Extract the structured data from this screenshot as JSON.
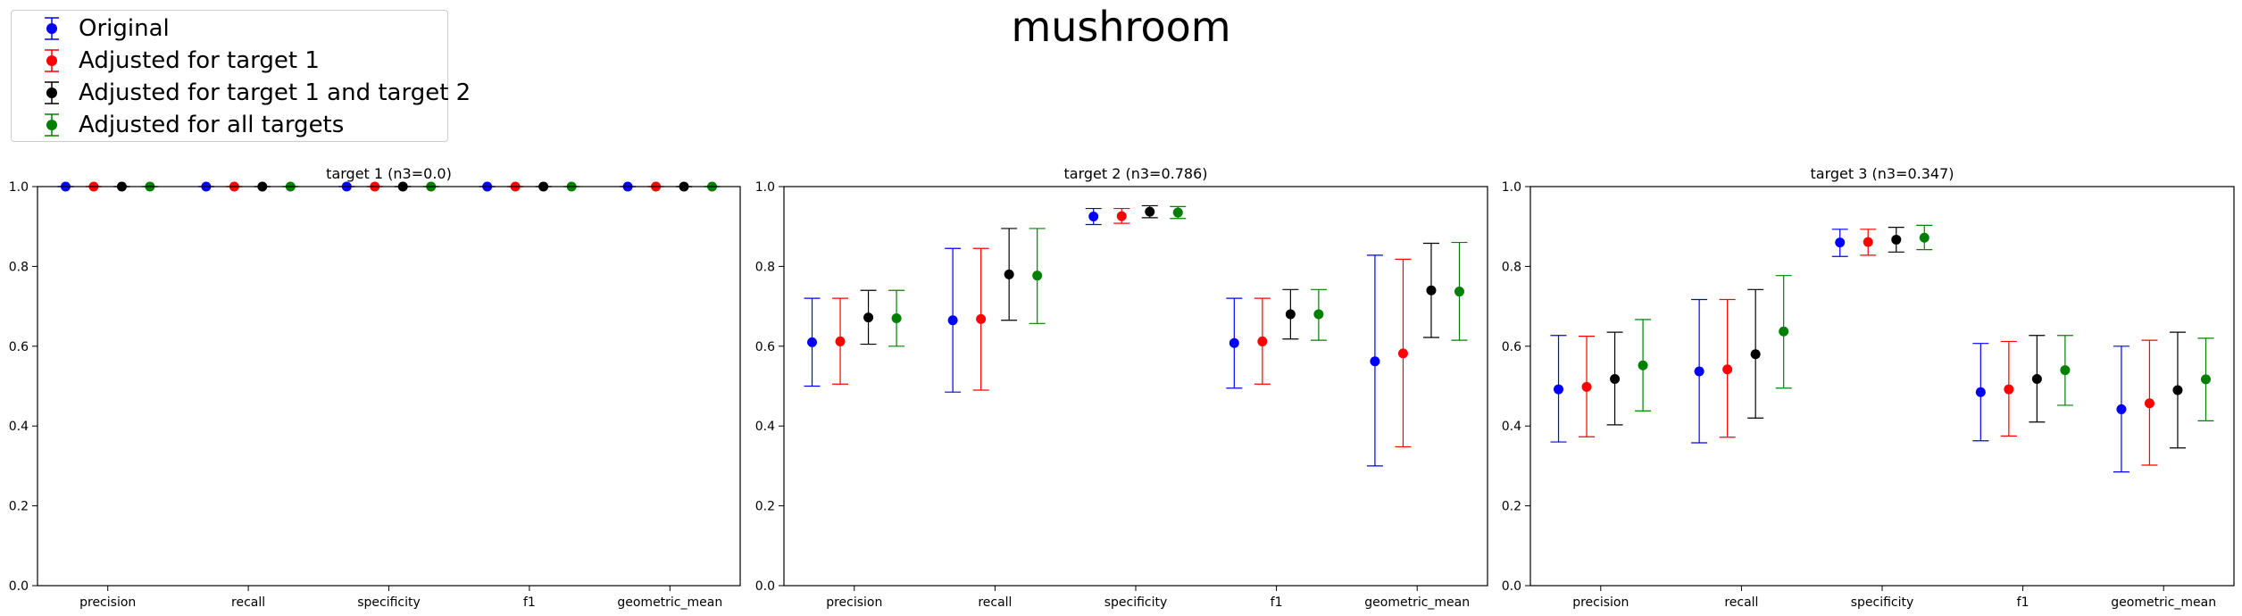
{
  "suptitle": "mushroom",
  "legend": [
    {
      "label": "Original",
      "color": "#0000ff"
    },
    {
      "label": "Adjusted for target 1",
      "color": "#ff0000"
    },
    {
      "label": "Adjusted for target 1 and target 2",
      "color": "#000000"
    },
    {
      "label": "Adjusted for all targets",
      "color": "#008000"
    }
  ],
  "chart_data": [
    {
      "type": "scatter",
      "title": "target 1 (n3=0.0)",
      "categories": [
        "precision",
        "recall",
        "specificity",
        "f1",
        "geometric_mean"
      ],
      "ylim": [
        0.0,
        1.0
      ],
      "yticks": [
        "0.0",
        "0.2",
        "0.4",
        "0.6",
        "0.8",
        "1.0"
      ],
      "series": [
        {
          "name": "Original",
          "color": "#0000ff",
          "values": [
            1.0,
            1.0,
            1.0,
            1.0,
            1.0
          ],
          "lower": [
            1.0,
            1.0,
            1.0,
            1.0,
            1.0
          ],
          "upper": [
            1.0,
            1.0,
            1.0,
            1.0,
            1.0
          ]
        },
        {
          "name": "Adjusted for target 1",
          "color": "#ff0000",
          "values": [
            1.0,
            1.0,
            1.0,
            1.0,
            1.0
          ],
          "lower": [
            1.0,
            1.0,
            1.0,
            1.0,
            1.0
          ],
          "upper": [
            1.0,
            1.0,
            1.0,
            1.0,
            1.0
          ]
        },
        {
          "name": "Adjusted for target 1 and target 2",
          "color": "#000000",
          "values": [
            1.0,
            1.0,
            1.0,
            1.0,
            1.0
          ],
          "lower": [
            1.0,
            1.0,
            1.0,
            1.0,
            1.0
          ],
          "upper": [
            1.0,
            1.0,
            1.0,
            1.0,
            1.0
          ]
        },
        {
          "name": "Adjusted for all targets",
          "color": "#008000",
          "values": [
            1.0,
            1.0,
            1.0,
            1.0,
            1.0
          ],
          "lower": [
            1.0,
            1.0,
            1.0,
            1.0,
            1.0
          ],
          "upper": [
            1.0,
            1.0,
            1.0,
            1.0,
            1.0
          ]
        }
      ]
    },
    {
      "type": "scatter",
      "title": "target 2 (n3=0.786)",
      "categories": [
        "precision",
        "recall",
        "specificity",
        "f1",
        "geometric_mean"
      ],
      "ylim": [
        0.0,
        1.0
      ],
      "yticks": [
        "0.0",
        "0.2",
        "0.4",
        "0.6",
        "0.8",
        "1.0"
      ],
      "series": [
        {
          "name": "Original",
          "color": "#0000ff",
          "values": [
            0.61,
            0.665,
            0.925,
            0.608,
            0.562
          ],
          "lower": [
            0.5,
            0.485,
            0.905,
            0.495,
            0.3
          ],
          "upper": [
            0.72,
            0.845,
            0.945,
            0.72,
            0.828
          ]
        },
        {
          "name": "Adjusted for target 1",
          "color": "#ff0000",
          "values": [
            0.612,
            0.668,
            0.926,
            0.612,
            0.582
          ],
          "lower": [
            0.505,
            0.49,
            0.908,
            0.505,
            0.348
          ],
          "upper": [
            0.72,
            0.845,
            0.945,
            0.72,
            0.818
          ]
        },
        {
          "name": "Adjusted for target 1 and target 2",
          "color": "#000000",
          "values": [
            0.672,
            0.78,
            0.937,
            0.68,
            0.74
          ],
          "lower": [
            0.605,
            0.665,
            0.922,
            0.618,
            0.622
          ],
          "upper": [
            0.74,
            0.895,
            0.952,
            0.742,
            0.858
          ]
        },
        {
          "name": "Adjusted for all targets",
          "color": "#008000",
          "values": [
            0.67,
            0.777,
            0.935,
            0.68,
            0.737
          ],
          "lower": [
            0.6,
            0.657,
            0.92,
            0.615,
            0.615
          ],
          "upper": [
            0.74,
            0.895,
            0.95,
            0.742,
            0.86
          ]
        }
      ]
    },
    {
      "type": "scatter",
      "title": "target 3 (n3=0.347)",
      "categories": [
        "precision",
        "recall",
        "specificity",
        "f1",
        "geometric_mean"
      ],
      "ylim": [
        0.0,
        1.0
      ],
      "yticks": [
        "0.0",
        "0.2",
        "0.4",
        "0.6",
        "0.8",
        "1.0"
      ],
      "series": [
        {
          "name": "Original",
          "color": "#0000ff",
          "values": [
            0.492,
            0.537,
            0.86,
            0.485,
            0.442
          ],
          "lower": [
            0.36,
            0.358,
            0.825,
            0.363,
            0.285
          ],
          "upper": [
            0.627,
            0.717,
            0.893,
            0.607,
            0.6
          ]
        },
        {
          "name": "Adjusted for target 1",
          "color": "#ff0000",
          "values": [
            0.498,
            0.542,
            0.861,
            0.492,
            0.457
          ],
          "lower": [
            0.373,
            0.372,
            0.828,
            0.375,
            0.302
          ],
          "upper": [
            0.625,
            0.717,
            0.893,
            0.612,
            0.615
          ]
        },
        {
          "name": "Adjusted for target 1 and target 2",
          "color": "#000000",
          "values": [
            0.518,
            0.58,
            0.867,
            0.518,
            0.49
          ],
          "lower": [
            0.403,
            0.42,
            0.836,
            0.41,
            0.345
          ],
          "upper": [
            0.635,
            0.742,
            0.898,
            0.627,
            0.635
          ]
        },
        {
          "name": "Adjusted for all targets",
          "color": "#008000",
          "values": [
            0.552,
            0.637,
            0.872,
            0.54,
            0.517
          ],
          "lower": [
            0.438,
            0.495,
            0.842,
            0.452,
            0.413
          ],
          "upper": [
            0.667,
            0.777,
            0.903,
            0.627,
            0.62
          ]
        }
      ]
    }
  ]
}
